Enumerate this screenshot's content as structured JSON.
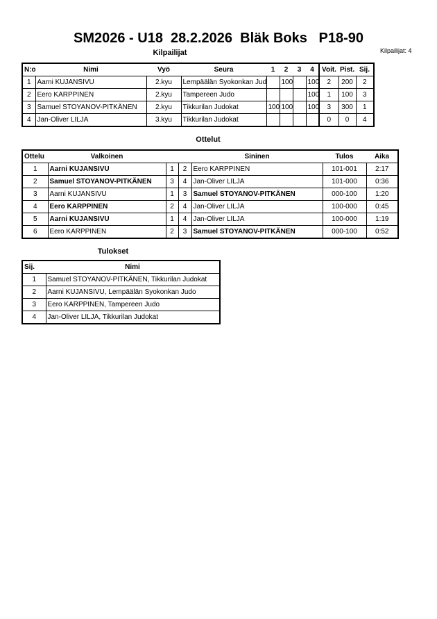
{
  "title": "SM2026 - U18  28.2.2026  Bläk Boks   P18-90",
  "competitors_section": {
    "title": "Kilpailijat",
    "count_label": "Kilpailijat: 4",
    "headers": [
      "N:o",
      "Nimi",
      "Vyö",
      "Seura",
      "1",
      "2",
      "3",
      "4",
      "Voit.",
      "Pist.",
      "Sij."
    ],
    "rows": [
      {
        "no": "1",
        "name": "Aarni KUJANSIVU",
        "belt": "2.kyu",
        "club": "Lempäälän Syokonkan Judo",
        "m1": "",
        "m2": "100",
        "m3": "",
        "m4": "100",
        "wins": "2",
        "points": "200",
        "place": "2"
      },
      {
        "no": "2",
        "name": "Eero KARPPINEN",
        "belt": "2.kyu",
        "club": "Tampereen Judo",
        "m1": "",
        "m2": "",
        "m3": "",
        "m4": "100",
        "wins": "1",
        "points": "100",
        "place": "3"
      },
      {
        "no": "3",
        "name": "Samuel STOYANOV-PITKÄNEN",
        "belt": "2.kyu",
        "club": "Tikkurilan Judokat",
        "m1": "100",
        "m2": "100",
        "m3": "",
        "m4": "100",
        "wins": "3",
        "points": "300",
        "place": "1"
      },
      {
        "no": "4",
        "name": "Jan-Oliver LILJA",
        "belt": "3.kyu",
        "club": "Tikkurilan Judokat",
        "m1": "",
        "m2": "",
        "m3": "",
        "m4": "",
        "wins": "0",
        "points": "0",
        "place": "4"
      }
    ]
  },
  "matches_section": {
    "title": "Ottelut",
    "headers": [
      "Ottelu",
      "Valkoinen",
      "Sininen",
      "Tulos",
      "Aika"
    ],
    "rows": [
      {
        "no": "1",
        "white": "Aarni KUJANSIVU",
        "wn": "1",
        "bn": "2",
        "blue": "Eero KARPPINEN",
        "result": "101-001",
        "time": "2:17",
        "winner": "white"
      },
      {
        "no": "2",
        "white": "Samuel STOYANOV-PITKÄNEN",
        "wn": "3",
        "bn": "4",
        "blue": "Jan-Oliver LILJA",
        "result": "101-000",
        "time": "0:36",
        "winner": "white"
      },
      {
        "no": "3",
        "white": "Aarni KUJANSIVU",
        "wn": "1",
        "bn": "3",
        "blue": "Samuel STOYANOV-PITKÄNEN",
        "result": "000-100",
        "time": "1:20",
        "winner": "blue"
      },
      {
        "no": "4",
        "white": "Eero KARPPINEN",
        "wn": "2",
        "bn": "4",
        "blue": "Jan-Oliver LILJA",
        "result": "100-000",
        "time": "0:45",
        "winner": "white"
      },
      {
        "no": "5",
        "white": "Aarni KUJANSIVU",
        "wn": "1",
        "bn": "4",
        "blue": "Jan-Oliver LILJA",
        "result": "100-000",
        "time": "1:19",
        "winner": "white"
      },
      {
        "no": "6",
        "white": "Eero KARPPINEN",
        "wn": "2",
        "bn": "3",
        "blue": "Samuel STOYANOV-PITKÄNEN",
        "result": "000-100",
        "time": "0:52",
        "winner": "blue"
      }
    ]
  },
  "results_section": {
    "title": "Tulokset",
    "headers": [
      "Sij.",
      "Nimi"
    ],
    "rows": [
      {
        "place": "1",
        "name": "Samuel STOYANOV-PITKÄNEN, Tikkurilan Judokat"
      },
      {
        "place": "2",
        "name": "Aarni KUJANSIVU, Lempäälän Syokonkan Judo"
      },
      {
        "place": "3",
        "name": "Eero KARPPINEN, Tampereen Judo"
      },
      {
        "place": "4",
        "name": "Jan-Oliver LILJA, Tikkurilan Judokat"
      }
    ]
  }
}
